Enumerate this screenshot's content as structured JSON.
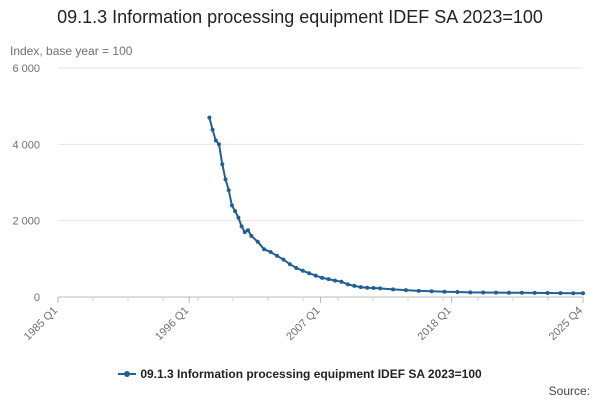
{
  "chart_data": {
    "type": "line",
    "title": "09.1.3 Information processing equipment IDEF SA 2023=100",
    "ylabel": "Index, base year = 100",
    "xlabel": "",
    "x_ticks": [
      "1985 Q1",
      "1996 Q1",
      "2007 Q1",
      "2018 Q1",
      "2025 Q4"
    ],
    "y_ticks": [
      {
        "value": 0,
        "label": "0"
      },
      {
        "value": 2000,
        "label": "2 000"
      },
      {
        "value": 4000,
        "label": "4 000"
      },
      {
        "value": 6000,
        "label": "6 000"
      }
    ],
    "ylim": [
      0,
      6000
    ],
    "xlim": [
      1985.0,
      2025.75
    ],
    "grid": true,
    "legend_position": "bottom",
    "series": [
      {
        "name": "09.1.3 Information processing equipment IDEF SA 2023=100",
        "color": "#206095",
        "x": [
          1996.75,
          1997.0,
          1997.25,
          1997.5,
          1997.75,
          1998.0,
          1998.25,
          1998.5,
          1998.75,
          1999.0,
          1999.25,
          1999.5,
          1999.75,
          2000.0,
          2000.5,
          2001.0,
          2001.5,
          2002.0,
          2002.5,
          2003.0,
          2003.5,
          2004.0,
          2004.5,
          2005.0,
          2005.5,
          2006.0,
          2006.5,
          2007.0,
          2007.5,
          2008.0,
          2008.5,
          2009.0,
          2009.5,
          2010.0,
          2011.0,
          2012.0,
          2013.0,
          2014.0,
          2015.0,
          2016.0,
          2017.0,
          2018.0,
          2019.0,
          2020.0,
          2021.0,
          2022.0,
          2023.0,
          2024.0,
          2025.0,
          2025.75
        ],
        "values": [
          4700,
          4380,
          4100,
          4000,
          3480,
          3080,
          2800,
          2400,
          2250,
          2080,
          1850,
          1700,
          1750,
          1600,
          1450,
          1250,
          1180,
          1080,
          980,
          860,
          760,
          690,
          620,
          560,
          500,
          470,
          430,
          400,
          330,
          290,
          260,
          240,
          235,
          225,
          200,
          180,
          160,
          150,
          140,
          130,
          120,
          118,
          115,
          112,
          110,
          108,
          106,
          103,
          100,
          98
        ]
      }
    ]
  },
  "source_label": "Source:"
}
